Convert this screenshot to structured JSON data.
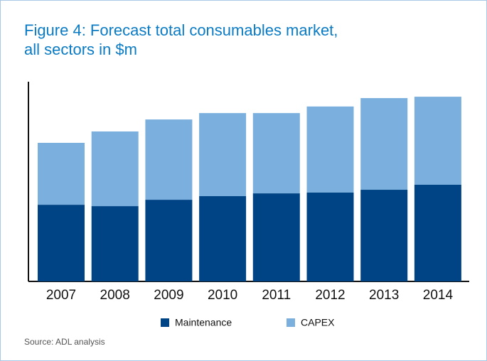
{
  "chart_data": {
    "type": "stacked_bar",
    "title": "Figure 4: Forecast total consumables market,",
    "subtitle": "all sectors in $m",
    "categories": [
      "2007",
      "2008",
      "2009",
      "2010",
      "2011",
      "2012",
      "2013",
      "2014"
    ],
    "series": [
      {
        "name": "Maintenance",
        "color": "#004486",
        "values": [
          38.4,
          37.7,
          40.9,
          42.7,
          44.1,
          44.5,
          45.9,
          48.4
        ]
      },
      {
        "name": "CAPEX",
        "color": "#7bb0de",
        "values": [
          31.0,
          37.4,
          40.2,
          41.6,
          40.2,
          43.1,
          45.9,
          44.1
        ]
      }
    ],
    "ylim": [
      0,
      100
    ],
    "source": "Source: ADL analysis"
  }
}
